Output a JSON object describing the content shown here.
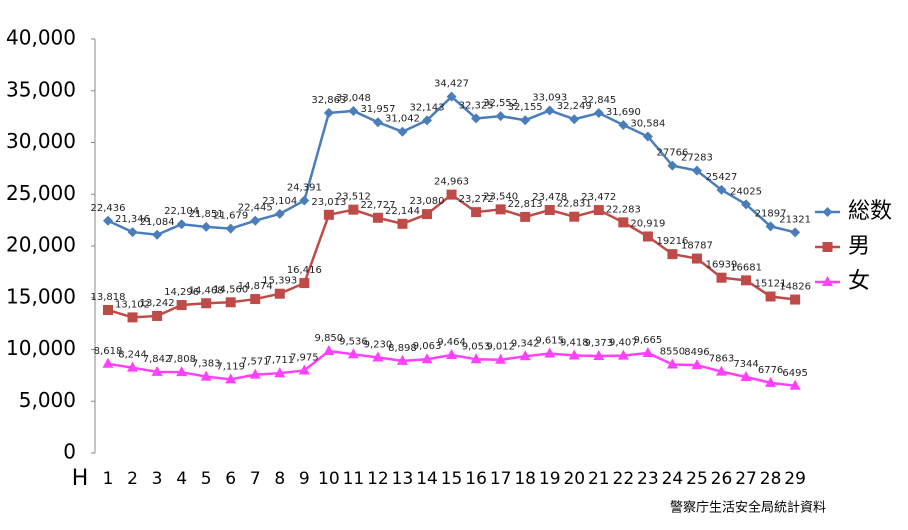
{
  "chart_data": {
    "type": "line",
    "xlabel": "H",
    "categories": [
      "1",
      "2",
      "3",
      "4",
      "5",
      "6",
      "7",
      "8",
      "9",
      "10",
      "11",
      "12",
      "13",
      "14",
      "15",
      "16",
      "17",
      "18",
      "19",
      "20",
      "21",
      "22",
      "23",
      "24",
      "25",
      "26",
      "27",
      "28",
      "29"
    ],
    "ylim": [
      0,
      40000
    ],
    "yticks": [
      0,
      {
        "value": 5000,
        "label": "5,000"
      },
      {
        "value": 10000,
        "label": "10,000"
      },
      {
        "value": 15000,
        "label": "15,000"
      },
      {
        "value": 20000,
        "label": "20,000"
      },
      {
        "value": 25000,
        "label": "25,000"
      },
      {
        "value": 30000,
        "label": "30,000"
      },
      {
        "value": 35000,
        "label": "35,000"
      },
      {
        "value": 40000,
        "label": "40,000"
      }
    ],
    "legend": "right",
    "series": [
      {
        "name": "総数",
        "color": "#4a7ebb",
        "marker": "diamond",
        "values": [
          22436,
          21346,
          21084,
          22104,
          21851,
          21679,
          22445,
          23104,
          24391,
          32863,
          33048,
          31957,
          31042,
          32143,
          34427,
          32325,
          32552,
          32155,
          33093,
          32249,
          32845,
          31690,
          30584,
          27766,
          27283,
          25427,
          24025,
          21897,
          21321
        ],
        "value_labels": [
          "22,436",
          "21,346",
          "21,084",
          "22,104",
          "21,851",
          "21,679",
          "22,445",
          "23,104",
          "24,391",
          "32,863",
          "33,048",
          "31,957",
          "31,042",
          "32,143",
          "34,427",
          "32,325",
          "32,552",
          "32,155",
          "33,093",
          "32,249",
          "32,845",
          "31,690",
          "30,584",
          "27766",
          "27283",
          "25427",
          "24025",
          "21897",
          "21321"
        ]
      },
      {
        "name": "男",
        "color": "#be4b48",
        "marker": "square",
        "values": [
          13818,
          13102,
          13242,
          14296,
          14468,
          14560,
          14874,
          15393,
          16416,
          23013,
          23512,
          22727,
          22144,
          23080,
          24963,
          23272,
          23540,
          22813,
          23478,
          22831,
          23472,
          22283,
          20919,
          19216,
          18787,
          16939,
          16681,
          15121,
          14826
        ],
        "value_labels": [
          "13,818",
          "13,102",
          "13,242",
          "14,296",
          "14,468",
          "14,560",
          "14,874",
          "15,393",
          "16,416",
          "23,013",
          "23,512",
          "22,727",
          "22,144",
          "23,080",
          "24,963",
          "23,272",
          "23,540",
          "22,813",
          "23,478",
          "22,831",
          "23,472",
          "22,283",
          "20,919",
          "19216",
          "18787",
          "16939",
          "16681",
          "15121",
          "14826"
        ]
      },
      {
        "name": "女",
        "color": "#ff40ff",
        "marker": "triangle",
        "values": [
          8618,
          8244,
          7842,
          7808,
          7383,
          7119,
          7571,
          7711,
          7975,
          9850,
          9536,
          9230,
          8898,
          9063,
          9464,
          9053,
          9012,
          9342,
          9615,
          9418,
          9373,
          9407,
          9665,
          8550,
          8496,
          7863,
          7344,
          6776,
          6495
        ],
        "value_labels": [
          "8,618",
          "8,244",
          "7,842",
          "7,808",
          "7,383",
          "7,119",
          "7,571",
          "7,711",
          "7,975",
          "9,850",
          "9,536",
          "9,230",
          "8,898",
          "9,063",
          "9,464",
          "9,053",
          "9,012",
          "9,342",
          "9,615",
          "9,418",
          "9,373",
          "9,407",
          "9,665",
          "8550",
          "8496",
          "7863",
          "7344",
          "6776",
          "6495"
        ]
      }
    ],
    "source": "警察庁生活安全局統計資料"
  }
}
